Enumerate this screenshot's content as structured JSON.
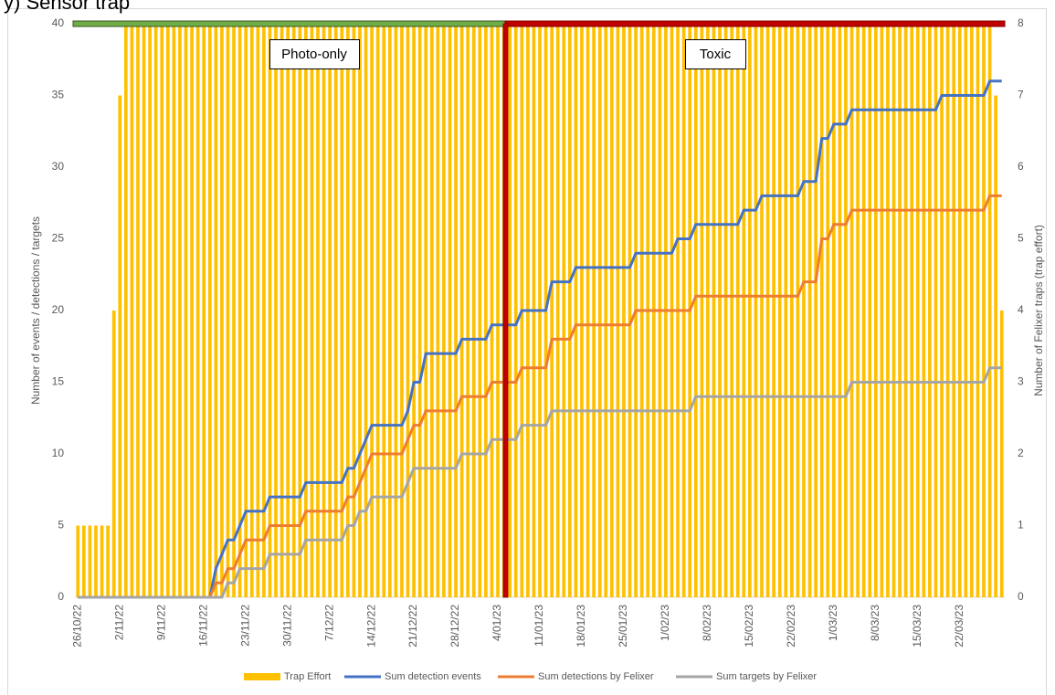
{
  "chart_data": {
    "type": "combo",
    "title": "y) Sensor trap",
    "y_label": "Number of events / detections / targets",
    "y2_label": "Number of Felixer traps (trap effort)",
    "annotations": [
      "Photo-only",
      "Toxic"
    ],
    "ylim": [
      0,
      40
    ],
    "yticks": [
      0,
      5,
      10,
      15,
      20,
      25,
      30,
      35,
      40
    ],
    "y2lim": [
      0,
      8
    ],
    "y2ticks": [
      0,
      1,
      2,
      3,
      4,
      5,
      6,
      7,
      8
    ],
    "categories": [
      "26/10/22",
      null,
      null,
      null,
      null,
      null,
      null,
      "2/11/22",
      null,
      null,
      null,
      null,
      null,
      null,
      "9/11/22",
      null,
      null,
      null,
      null,
      null,
      null,
      "16/11/22",
      null,
      null,
      null,
      null,
      null,
      null,
      "23/11/22",
      null,
      null,
      null,
      null,
      null,
      null,
      "30/11/22",
      null,
      null,
      null,
      null,
      null,
      null,
      "7/12/22",
      null,
      null,
      null,
      null,
      null,
      null,
      "14/12/22",
      null,
      null,
      null,
      null,
      null,
      null,
      "21/12/22",
      null,
      null,
      null,
      null,
      null,
      null,
      "28/12/22",
      null,
      null,
      null,
      null,
      null,
      null,
      "4/01/23",
      null,
      null,
      null,
      null,
      null,
      null,
      "11/01/23",
      null,
      null,
      null,
      null,
      null,
      null,
      "18/01/23",
      null,
      null,
      null,
      null,
      null,
      null,
      "25/01/23",
      null,
      null,
      null,
      null,
      null,
      null,
      "1/02/23",
      null,
      null,
      null,
      null,
      null,
      null,
      "8/02/23",
      null,
      null,
      null,
      null,
      null,
      null,
      "15/02/23",
      null,
      null,
      null,
      null,
      null,
      null,
      "22/02/23",
      null,
      null,
      null,
      null,
      null,
      null,
      "1/03/23",
      null,
      null,
      null,
      null,
      null,
      null,
      "8/03/23",
      null,
      null,
      null,
      null,
      null,
      null,
      "15/03/23",
      null,
      null,
      null,
      null,
      null,
      null,
      "22/03/23",
      null,
      null,
      null,
      null,
      null,
      null,
      null
    ],
    "series": [
      {
        "name": "Trap Effort",
        "type": "bar",
        "axis": "y2",
        "color": "#ffc000",
        "values": [
          1,
          1,
          1,
          1,
          1,
          1,
          4,
          7,
          8,
          8,
          8,
          8,
          8,
          8,
          8,
          8,
          8,
          8,
          8,
          8,
          8,
          8,
          8,
          8,
          8,
          8,
          8,
          8,
          8,
          8,
          8,
          8,
          8,
          8,
          8,
          8,
          8,
          8,
          8,
          8,
          8,
          8,
          8,
          8,
          8,
          8,
          8,
          8,
          8,
          8,
          8,
          8,
          8,
          8,
          8,
          8,
          8,
          8,
          8,
          8,
          8,
          8,
          8,
          8,
          8,
          8,
          8,
          8,
          8,
          8,
          8,
          8,
          8,
          8,
          8,
          8,
          8,
          8,
          8,
          8,
          8,
          8,
          8,
          8,
          8,
          8,
          8,
          8,
          8,
          8,
          8,
          8,
          8,
          8,
          8,
          8,
          8,
          8,
          8,
          8,
          8,
          8,
          8,
          8,
          8,
          8,
          8,
          8,
          8,
          8,
          8,
          8,
          8,
          8,
          8,
          8,
          8,
          8,
          8,
          8,
          8,
          8,
          8,
          8,
          8,
          8,
          8,
          8,
          8,
          8,
          8,
          8,
          8,
          8,
          8,
          8,
          8,
          8,
          8,
          8,
          8,
          8,
          8,
          8,
          8,
          8,
          8,
          8,
          8,
          8,
          8,
          8,
          8,
          7,
          4
        ]
      },
      {
        "name": "Sum detection events",
        "type": "line",
        "color": "#4472c4",
        "values": [
          0,
          0,
          0,
          0,
          0,
          0,
          0,
          0,
          0,
          0,
          0,
          0,
          0,
          0,
          0,
          0,
          0,
          0,
          0,
          0,
          0,
          0,
          0,
          2,
          3,
          4,
          4,
          5,
          6,
          6,
          6,
          6,
          7,
          7,
          7,
          7,
          7,
          7,
          8,
          8,
          8,
          8,
          8,
          8,
          8,
          9,
          9,
          10,
          11,
          12,
          12,
          12,
          12,
          12,
          12,
          13,
          15,
          15,
          17,
          17,
          17,
          17,
          17,
          17,
          18,
          18,
          18,
          18,
          18,
          19,
          19,
          19,
          19,
          19,
          20,
          20,
          20,
          20,
          20,
          22,
          22,
          22,
          22,
          23,
          23,
          23,
          23,
          23,
          23,
          23,
          23,
          23,
          23,
          24,
          24,
          24,
          24,
          24,
          24,
          24,
          25,
          25,
          25,
          26,
          26,
          26,
          26,
          26,
          26,
          26,
          26,
          27,
          27,
          27,
          28,
          28,
          28,
          28,
          28,
          28,
          28,
          29,
          29,
          29,
          32,
          32,
          33,
          33,
          33,
          34,
          34,
          34,
          34,
          34,
          34,
          34,
          34,
          34,
          34,
          34,
          34,
          34,
          34,
          34,
          35,
          35,
          35,
          35,
          35,
          35,
          35,
          35,
          36,
          36,
          36
        ]
      },
      {
        "name": "Sum detections by Felixer",
        "type": "line",
        "color": "#ed7d31",
        "values": [
          0,
          0,
          0,
          0,
          0,
          0,
          0,
          0,
          0,
          0,
          0,
          0,
          0,
          0,
          0,
          0,
          0,
          0,
          0,
          0,
          0,
          0,
          0,
          1,
          1,
          2,
          2,
          3,
          4,
          4,
          4,
          4,
          5,
          5,
          5,
          5,
          5,
          5,
          6,
          6,
          6,
          6,
          6,
          6,
          6,
          7,
          7,
          8,
          9,
          10,
          10,
          10,
          10,
          10,
          10,
          11,
          12,
          12,
          13,
          13,
          13,
          13,
          13,
          13,
          14,
          14,
          14,
          14,
          14,
          15,
          15,
          15,
          15,
          15,
          16,
          16,
          16,
          16,
          16,
          18,
          18,
          18,
          18,
          19,
          19,
          19,
          19,
          19,
          19,
          19,
          19,
          19,
          19,
          20,
          20,
          20,
          20,
          20,
          20,
          20,
          20,
          20,
          20,
          21,
          21,
          21,
          21,
          21,
          21,
          21,
          21,
          21,
          21,
          21,
          21,
          21,
          21,
          21,
          21,
          21,
          21,
          22,
          22,
          22,
          25,
          25,
          26,
          26,
          26,
          27,
          27,
          27,
          27,
          27,
          27,
          27,
          27,
          27,
          27,
          27,
          27,
          27,
          27,
          27,
          27,
          27,
          27,
          27,
          27,
          27,
          27,
          27,
          28,
          28,
          28
        ]
      },
      {
        "name": "Sum targets by Felixer",
        "type": "line",
        "color": "#a5a5a5",
        "values": [
          0,
          0,
          0,
          0,
          0,
          0,
          0,
          0,
          0,
          0,
          0,
          0,
          0,
          0,
          0,
          0,
          0,
          0,
          0,
          0,
          0,
          0,
          0,
          0,
          0,
          1,
          1,
          2,
          2,
          2,
          2,
          2,
          3,
          3,
          3,
          3,
          3,
          3,
          4,
          4,
          4,
          4,
          4,
          4,
          4,
          5,
          5,
          6,
          6,
          7,
          7,
          7,
          7,
          7,
          7,
          8,
          9,
          9,
          9,
          9,
          9,
          9,
          9,
          9,
          10,
          10,
          10,
          10,
          10,
          11,
          11,
          11,
          11,
          11,
          12,
          12,
          12,
          12,
          12,
          13,
          13,
          13,
          13,
          13,
          13,
          13,
          13,
          13,
          13,
          13,
          13,
          13,
          13,
          13,
          13,
          13,
          13,
          13,
          13,
          13,
          13,
          13,
          13,
          14,
          14,
          14,
          14,
          14,
          14,
          14,
          14,
          14,
          14,
          14,
          14,
          14,
          14,
          14,
          14,
          14,
          14,
          14,
          14,
          14,
          14,
          14,
          14,
          14,
          14,
          15,
          15,
          15,
          15,
          15,
          15,
          15,
          15,
          15,
          15,
          15,
          15,
          15,
          15,
          15,
          15,
          15,
          15,
          15,
          15,
          15,
          15,
          15,
          16,
          16,
          16
        ]
      }
    ]
  }
}
